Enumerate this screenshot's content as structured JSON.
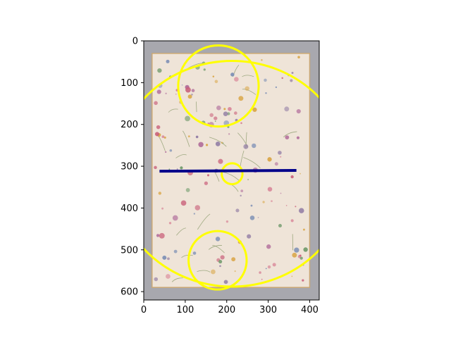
{
  "chart_data": {
    "type": "image",
    "title": "",
    "xlabel": "",
    "ylabel": "",
    "xlim": [
      0,
      423
    ],
    "ylim": [
      620,
      0
    ],
    "y_inverted": true,
    "x_ticks": [
      0,
      100,
      200,
      300,
      400
    ],
    "y_ticks": [
      0,
      100,
      200,
      300,
      400,
      500,
      600
    ],
    "image_content": "embroidered textile panel with multicolored floral sprays on a cream ground",
    "image_region": {
      "x": [
        0,
        423
      ],
      "y": [
        0,
        620
      ]
    },
    "textile_region": {
      "x": [
        20,
        400
      ],
      "y": [
        30,
        590
      ]
    },
    "overlays": {
      "circles": [
        {
          "cx": 180,
          "cy": 108,
          "r": 97,
          "color": "#ffff00"
        },
        {
          "cx": 213,
          "cy": 318,
          "r": 25,
          "color": "#ffff00"
        },
        {
          "cx": 178,
          "cy": 525,
          "r": 70,
          "color": "#ffff00"
        }
      ],
      "ellipses": [
        {
          "cx": 213,
          "cy": 318,
          "rx": 285,
          "ry": 270,
          "color": "#ffff00"
        }
      ],
      "lines": [
        {
          "x1": 38,
          "y1": 312,
          "x2": 368,
          "y2": 310,
          "color": "#00008b"
        }
      ]
    },
    "colors": {
      "background_gray": "#a8a8ae",
      "textile": "#efe4d8",
      "overlay_yellow": "#ffff00",
      "line_navy": "#00008b"
    }
  }
}
